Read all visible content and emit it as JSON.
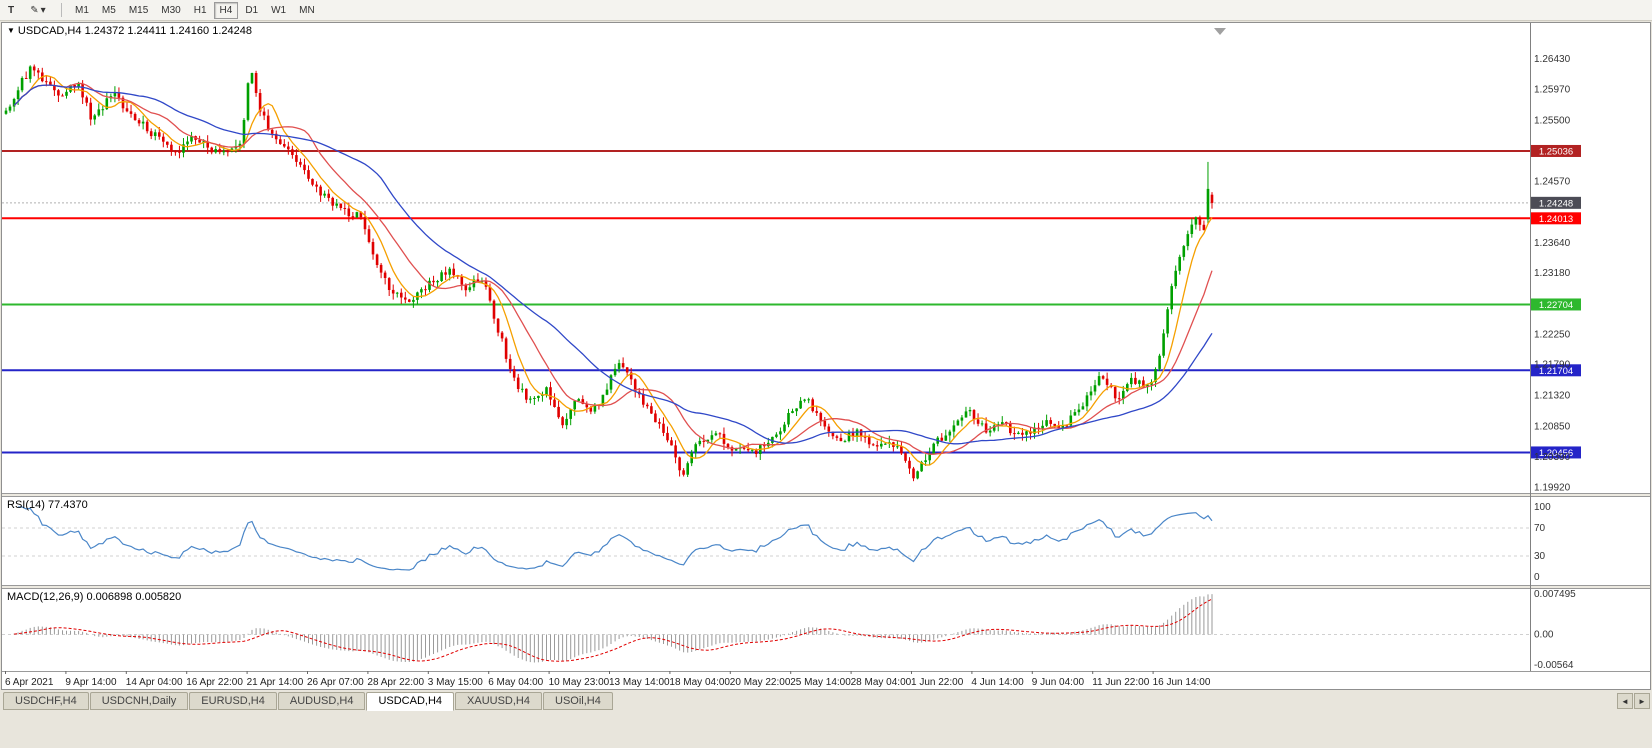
{
  "icons": {
    "pencil": "✎",
    "dropdown": "▾",
    "triangle_down": "▼",
    "arrow_left": "◄",
    "arrow_right": "►"
  },
  "toolbar": {
    "t_button": "T",
    "timeframes": [
      "M1",
      "M5",
      "M15",
      "M30",
      "H1",
      "H4",
      "D1",
      "W1",
      "MN"
    ],
    "active_timeframe": "H4"
  },
  "chart": {
    "symbol": "USDCAD,H4",
    "ohlc": "1.24372 1.24411 1.24160 1.24248",
    "current_price": "1.24248",
    "current_price_color": "#4c4c56",
    "price_ticks": [
      "1.26430",
      "1.25970",
      "1.25500",
      "1.24570",
      "1.23640",
      "1.23180",
      "1.22250",
      "1.21790",
      "1.21320",
      "1.20850",
      "1.20390",
      "1.19920"
    ],
    "hlines": [
      {
        "price": 1.25036,
        "label": "1.25036",
        "color": "#b22222"
      },
      {
        "price": 1.24013,
        "label": "1.24013",
        "color": "#ff0000"
      },
      {
        "price": 1.22704,
        "label": "1.22704",
        "color": "#2eb82e"
      },
      {
        "price": 1.21704,
        "label": "1.21704",
        "color": "#2424c8"
      },
      {
        "price": 1.20456,
        "label": "1.20456",
        "color": "#2424c8"
      }
    ],
    "time_labels": [
      "6 Apr 2021",
      "9 Apr 14:00",
      "14 Apr 04:00",
      "16 Apr 22:00",
      "21 Apr 14:00",
      "26 Apr 07:00",
      "28 Apr 22:00",
      "3 May 15:00",
      "6 May 04:00",
      "10 May 23:00",
      "13 May 14:00",
      "18 May 04:00",
      "20 May 22:00",
      "25 May 14:00",
      "28 May 04:00",
      "1 Jun 22:00",
      "4 Jun 14:00",
      "9 Jun 04:00",
      "11 Jun 22:00",
      "16 Jun 14:00"
    ]
  },
  "rsi_panel": {
    "label": "RSI(14) 77.4370",
    "value": 77.437,
    "period": 14,
    "ticks": [
      "100",
      "70",
      "30",
      "0"
    ],
    "levels": [
      70,
      30
    ],
    "color": "#4a86c8"
  },
  "macd_panel": {
    "label": "MACD(12,26,9) 0.006898 0.005820",
    "fast": 12,
    "slow": 26,
    "signal": 9,
    "macd_value": 0.006898,
    "signal_value": 0.00582,
    "ticks": [
      "0.007495",
      "0.00",
      "-0.00564"
    ],
    "range": [
      -0.00564,
      0.007495
    ],
    "hist_color": "#9a9a9a",
    "signal_color": "#e00000"
  },
  "chart_data": {
    "type": "candlestick",
    "symbol": "USDCAD",
    "timeframe": "H4",
    "ylim": [
      1.1984,
      1.2698
    ],
    "bars": 300,
    "seed": 20210618,
    "noise": 0.0012,
    "wick": 0.001,
    "colors": {
      "up": "#00a000",
      "down": "#e00000"
    },
    "moving_averages": [
      {
        "period": 7,
        "color": "#f5a000"
      },
      {
        "period": 16,
        "color": "#e05050"
      },
      {
        "period": 34,
        "color": "#3048c8"
      }
    ],
    "price_path": [
      [
        0.0,
        1.256
      ],
      [
        0.01,
        1.26
      ],
      [
        0.022,
        1.2633
      ],
      [
        0.035,
        1.2605
      ],
      [
        0.046,
        1.259
      ],
      [
        0.06,
        1.261
      ],
      [
        0.071,
        1.255
      ],
      [
        0.088,
        1.2592
      ],
      [
        0.105,
        1.2556
      ],
      [
        0.125,
        1.2524
      ],
      [
        0.142,
        1.2503
      ],
      [
        0.155,
        1.2528
      ],
      [
        0.17,
        1.2505
      ],
      [
        0.183,
        1.2508
      ],
      [
        0.196,
        1.252
      ],
      [
        0.202,
        1.2636
      ],
      [
        0.21,
        1.257
      ],
      [
        0.222,
        1.252
      ],
      [
        0.233,
        1.2504
      ],
      [
        0.245,
        1.2478
      ],
      [
        0.262,
        1.2438
      ],
      [
        0.279,
        1.2412
      ],
      [
        0.295,
        1.2405
      ],
      [
        0.308,
        1.233
      ],
      [
        0.32,
        1.229
      ],
      [
        0.333,
        1.2272
      ],
      [
        0.349,
        1.23
      ],
      [
        0.366,
        1.2322
      ],
      [
        0.382,
        1.2295
      ],
      [
        0.395,
        1.2312
      ],
      [
        0.407,
        1.224
      ],
      [
        0.42,
        1.216
      ],
      [
        0.432,
        1.2128
      ],
      [
        0.449,
        1.2142
      ],
      [
        0.461,
        1.209
      ],
      [
        0.474,
        1.2128
      ],
      [
        0.486,
        1.2105
      ],
      [
        0.498,
        1.2142
      ],
      [
        0.509,
        1.219
      ],
      [
        0.521,
        1.2142
      ],
      [
        0.536,
        1.2105
      ],
      [
        0.551,
        1.206
      ],
      [
        0.561,
        1.2012
      ],
      [
        0.573,
        1.2058
      ],
      [
        0.59,
        1.2075
      ],
      [
        0.602,
        1.205
      ],
      [
        0.619,
        1.2046
      ],
      [
        0.635,
        1.2062
      ],
      [
        0.652,
        1.2112
      ],
      [
        0.664,
        1.213
      ],
      [
        0.677,
        1.2086
      ],
      [
        0.693,
        1.2065
      ],
      [
        0.706,
        1.208
      ],
      [
        0.722,
        1.2052
      ],
      [
        0.739,
        1.2058
      ],
      [
        0.753,
        1.2008
      ],
      [
        0.768,
        1.2055
      ],
      [
        0.784,
        1.2082
      ],
      [
        0.797,
        1.211
      ],
      [
        0.813,
        1.208
      ],
      [
        0.826,
        1.2092
      ],
      [
        0.842,
        1.2066
      ],
      [
        0.859,
        1.2092
      ],
      [
        0.875,
        1.2082
      ],
      [
        0.892,
        1.2112
      ],
      [
        0.908,
        1.2165
      ],
      [
        0.921,
        1.2128
      ],
      [
        0.933,
        1.2155
      ],
      [
        0.946,
        1.2148
      ],
      [
        0.955,
        1.2172
      ],
      [
        0.962,
        1.225
      ],
      [
        0.968,
        1.2318
      ],
      [
        0.979,
        1.2372
      ],
      [
        0.987,
        1.2402
      ],
      [
        0.994,
        1.2388
      ],
      [
        1.0,
        1.2425
      ]
    ],
    "last_bars": [
      {
        "open": 1.24,
        "high": 1.2487,
        "low": 1.2393,
        "close": 1.2446
      },
      {
        "open": 1.24372,
        "high": 1.24411,
        "low": 1.2416,
        "close": 1.24248
      }
    ]
  },
  "tabs": {
    "items": [
      "USDCHF,H4",
      "USDCNH,Daily",
      "EURUSD,H4",
      "AUDUSD,H4",
      "USDCAD,H4",
      "XAUUSD,H4",
      "USOil,H4"
    ],
    "active": "USDCAD,H4"
  }
}
